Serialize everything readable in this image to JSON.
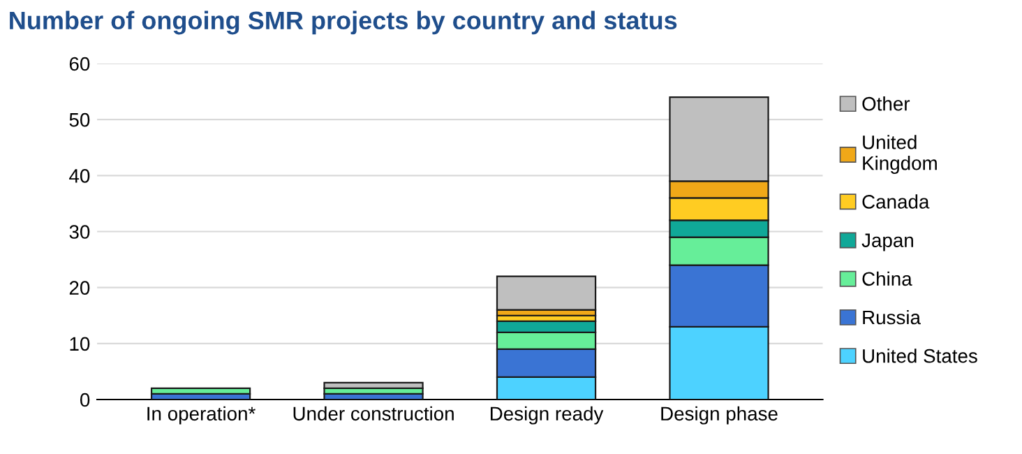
{
  "chart_data": {
    "type": "bar",
    "title": "Number of ongoing SMR projects by country and status",
    "categories": [
      "In operation*",
      "Under construction",
      "Design ready",
      "Design phase"
    ],
    "stacked": true,
    "ylim": [
      0,
      60
    ],
    "yticks": [
      0,
      10,
      20,
      30,
      40,
      50,
      60
    ],
    "grid": "y",
    "legend": "right",
    "series": [
      {
        "name": "United States",
        "color": "#4dd2ff",
        "values": [
          null,
          null,
          4,
          13
        ]
      },
      {
        "name": "Russia",
        "color": "#3a74d4",
        "values": [
          1,
          1,
          5,
          11
        ]
      },
      {
        "name": "China",
        "color": "#66ee99",
        "values": [
          1,
          1,
          3,
          5
        ]
      },
      {
        "name": "Japan",
        "color": "#10a898",
        "values": [
          null,
          null,
          2,
          3
        ]
      },
      {
        "name": "Canada",
        "color": "#ffcc22",
        "values": [
          null,
          null,
          1,
          4
        ]
      },
      {
        "name": "United\nKingdom",
        "color": "#f0a818",
        "values": [
          null,
          null,
          1,
          3
        ]
      },
      {
        "name": "Other",
        "color": "#bfbfbf",
        "values": [
          null,
          1,
          6,
          15
        ]
      }
    ]
  }
}
